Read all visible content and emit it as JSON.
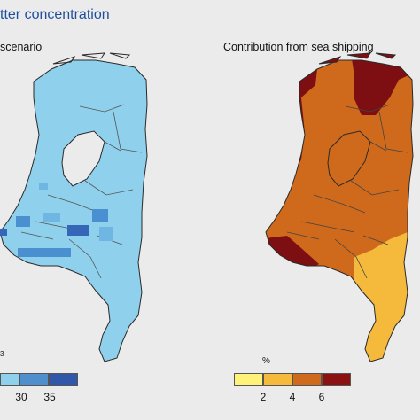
{
  "header": {
    "title": "tter concentration"
  },
  "left_panel": {
    "title": "scenario",
    "unit_fragment": "3",
    "legend": {
      "colors": [
        "#8fd0ec",
        "#4f8fce",
        "#3157a9"
      ],
      "ticks": [
        "30",
        "35"
      ]
    },
    "base_color": "#8fd0ec",
    "highlight_colors": [
      "#6fb6e2",
      "#4a8fd0",
      "#3566b8"
    ]
  },
  "right_panel": {
    "title": "Contribution from sea shipping",
    "unit": "%",
    "legend": {
      "colors": [
        "#fff27a",
        "#f5b93b",
        "#cf6a1c",
        "#8a1212"
      ],
      "ticks": [
        "2",
        "4",
        "6"
      ]
    },
    "zone_colors": {
      "low": "#f5b93b",
      "mid": "#cf6a1c",
      "high": "#7d0f12"
    }
  }
}
